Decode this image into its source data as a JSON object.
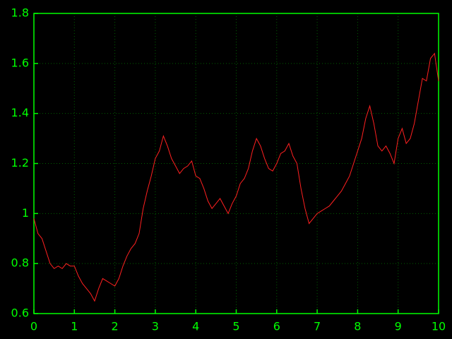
{
  "chart_data": {
    "type": "line",
    "x": [
      0,
      0.1,
      0.2,
      0.3,
      0.4,
      0.5,
      0.6,
      0.7,
      0.8,
      0.9,
      1,
      1.1,
      1.2,
      1.3,
      1.4,
      1.5,
      1.6,
      1.7,
      1.8,
      1.9,
      2,
      2.1,
      2.2,
      2.3,
      2.4,
      2.5,
      2.6,
      2.7,
      2.8,
      2.9,
      3,
      3.1,
      3.2,
      3.3,
      3.4,
      3.5,
      3.6,
      3.7,
      3.8,
      3.9,
      4,
      4.1,
      4.2,
      4.3,
      4.4,
      4.5,
      4.6,
      4.7,
      4.8,
      4.9,
      5,
      5.1,
      5.2,
      5.3,
      5.4,
      5.5,
      5.6,
      5.7,
      5.8,
      5.9,
      6,
      6.1,
      6.2,
      6.3,
      6.4,
      6.5,
      6.6,
      6.7,
      6.8,
      6.9,
      7,
      7.1,
      7.2,
      7.3,
      7.4,
      7.5,
      7.6,
      7.7,
      7.8,
      7.9,
      8,
      8.1,
      8.2,
      8.3,
      8.4,
      8.5,
      8.6,
      8.7,
      8.8,
      8.9,
      9,
      9.1,
      9.2,
      9.3,
      9.4,
      9.5,
      9.6,
      9.7,
      9.8,
      9.9,
      10
    ],
    "series": [
      {
        "color": "#ff2020",
        "values": [
          0.98,
          0.92,
          0.9,
          0.85,
          0.8,
          0.78,
          0.79,
          0.78,
          0.8,
          0.79,
          0.79,
          0.75,
          0.72,
          0.7,
          0.68,
          0.65,
          0.7,
          0.74,
          0.73,
          0.72,
          0.71,
          0.74,
          0.79,
          0.83,
          0.86,
          0.88,
          0.92,
          1.02,
          1.09,
          1.15,
          1.22,
          1.25,
          1.31,
          1.27,
          1.22,
          1.19,
          1.16,
          1.18,
          1.19,
          1.21,
          1.15,
          1.14,
          1.1,
          1.05,
          1.02,
          1.04,
          1.06,
          1.03,
          1.0,
          1.04,
          1.07,
          1.12,
          1.14,
          1.18,
          1.25,
          1.3,
          1.27,
          1.22,
          1.18,
          1.17,
          1.2,
          1.24,
          1.25,
          1.28,
          1.23,
          1.2,
          1.1,
          1.02,
          0.96,
          0.98,
          1.0,
          1.01,
          1.02,
          1.03,
          1.05,
          1.07,
          1.09,
          1.12,
          1.15,
          1.2,
          1.25,
          1.3,
          1.38,
          1.43,
          1.36,
          1.27,
          1.25,
          1.27,
          1.24,
          1.2,
          1.3,
          1.34,
          1.28,
          1.3,
          1.36,
          1.45,
          1.54,
          1.53,
          1.62,
          1.64,
          1.53
        ]
      }
    ],
    "xlim": [
      0,
      10
    ],
    "xticks": [
      0,
      1,
      2,
      3,
      4,
      5,
      6,
      7,
      8,
      9,
      10
    ],
    "ylim": [
      0.6,
      1.8
    ],
    "yticks": [
      0.6,
      0.8,
      1,
      1.2,
      1.4,
      1.6,
      1.8
    ],
    "grid": true,
    "axis_color": "#00ff00"
  }
}
